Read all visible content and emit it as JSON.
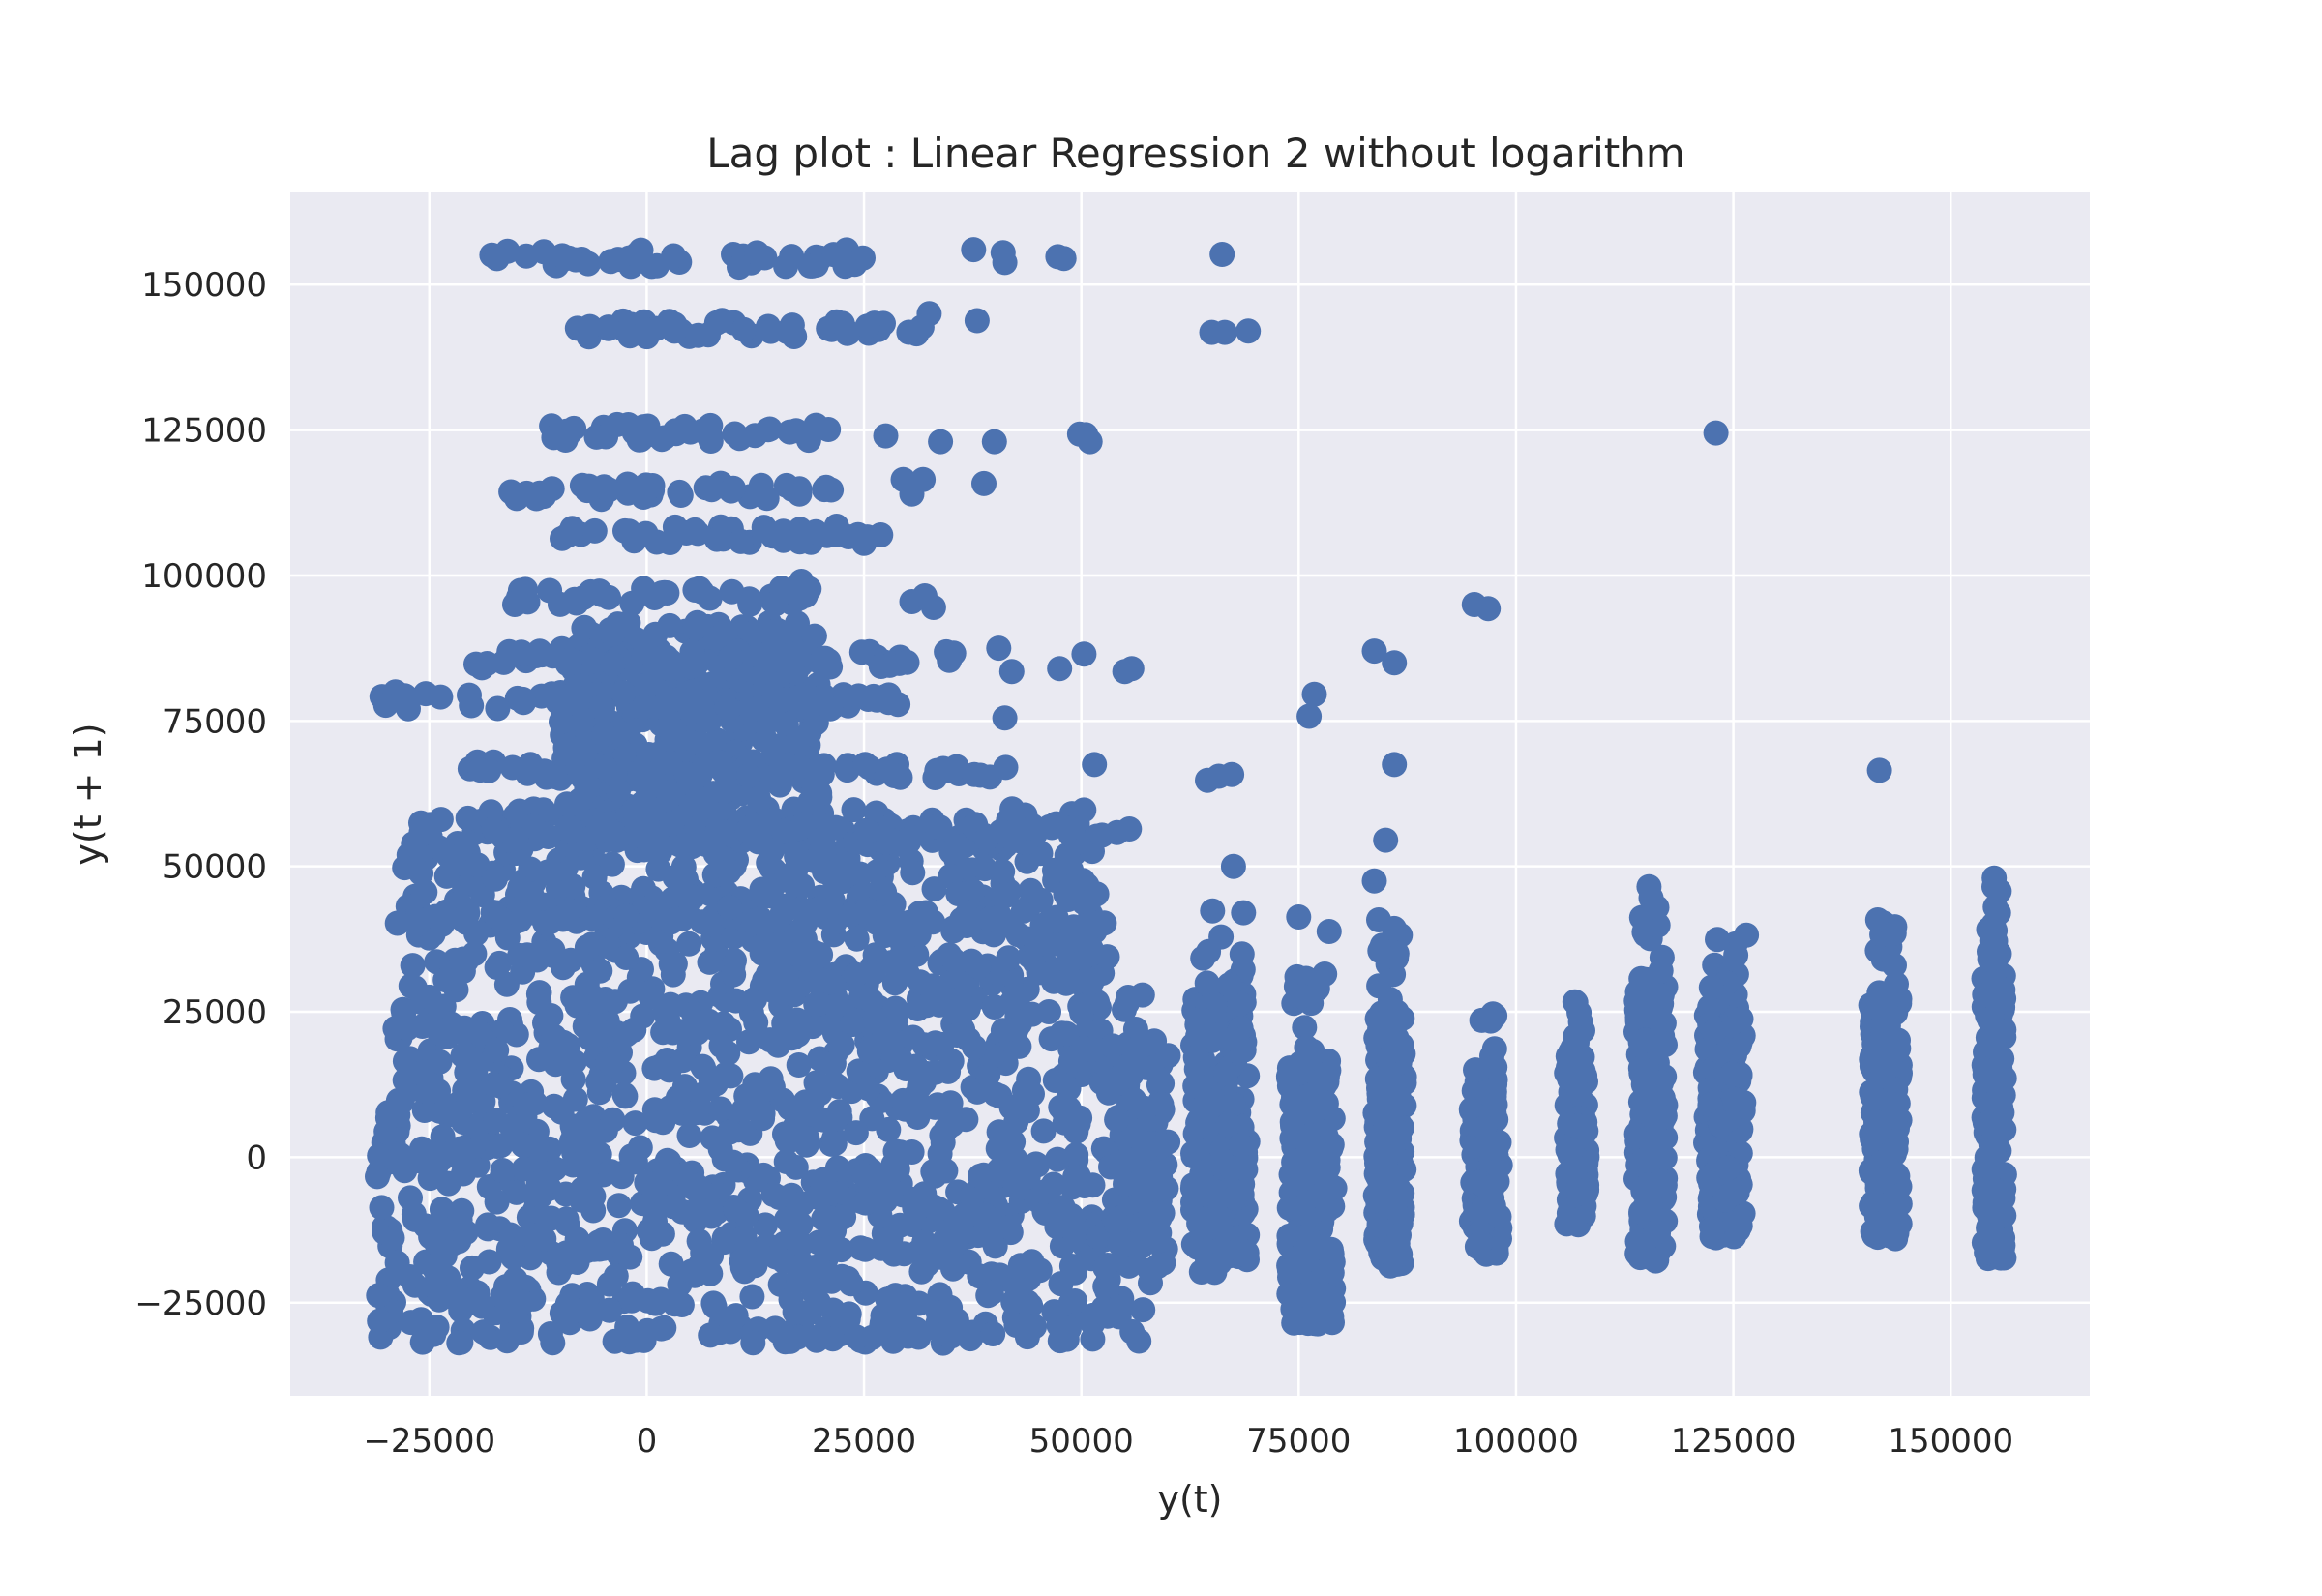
{
  "chart_data": {
    "type": "scatter",
    "title": "Lag plot : Linear Regression 2 without logarithm",
    "xlabel": "y(t)",
    "ylabel": "y(t + 1)",
    "xlim": [
      -41000,
      166000
    ],
    "ylim": [
      -41000,
      166000
    ],
    "xticks": [
      -25000,
      0,
      25000,
      50000,
      75000,
      100000,
      125000,
      150000
    ],
    "xtick_labels": [
      "−25000",
      "0",
      "25000",
      "50000",
      "75000",
      "100000",
      "125000",
      "150000"
    ],
    "yticks": [
      -25000,
      0,
      25000,
      50000,
      75000,
      100000,
      125000,
      150000
    ],
    "ytick_labels": [
      "−25000",
      "0",
      "25000",
      "50000",
      "75000",
      "100000",
      "125000",
      "150000"
    ],
    "grid": true,
    "point_color": "#4c72b0",
    "background_color": "#eaeaf2",
    "grid_color": "#ffffff",
    "dense_region": {
      "x": [
        -31000,
        58000
      ],
      "y": [
        -32000,
        60000
      ]
    },
    "clusters": [
      {
        "x": [
          62000,
          70000
        ],
        "y": [
          -20000,
          43000
        ]
      },
      {
        "x": [
          73000,
          80000
        ],
        "y": [
          -29000,
          32000
        ]
      },
      {
        "x": [
          83000,
          88000
        ],
        "y": [
          -19000,
          40000
        ]
      },
      {
        "x": [
          94000,
          99000
        ],
        "y": [
          -17000,
          25000
        ]
      },
      {
        "x": [
          105000,
          109000
        ],
        "y": [
          -12000,
          29000
        ]
      },
      {
        "x": [
          113000,
          118000
        ],
        "y": [
          -18000,
          46000
        ]
      },
      {
        "x": [
          121000,
          127000
        ],
        "y": [
          -14000,
          38000
        ]
      },
      {
        "x": [
          140000,
          145000
        ],
        "y": [
          -14000,
          41000
        ]
      },
      {
        "x": [
          153000,
          157000
        ],
        "y": [
          -18000,
          48000
        ]
      }
    ],
    "bands": [
      {
        "x": [
          -18000,
          25000
        ],
        "y": 154500
      },
      {
        "x": [
          -8000,
          33000
        ],
        "y": 142500
      },
      {
        "x": [
          -12000,
          23000
        ],
        "y": 124500
      },
      {
        "x": [
          -16000,
          22000
        ],
        "y": 114500
      },
      {
        "x": [
          -11000,
          27000
        ],
        "y": 107000
      },
      {
        "x": [
          -16000,
          20000
        ],
        "y": 96500
      },
      {
        "x": [
          -20000,
          36000
        ],
        "y": 85500
      },
      {
        "x": [
          -31000,
          30000
        ],
        "y": 78500
      },
      {
        "x": [
          -21000,
          42000
        ],
        "y": 66500
      },
      {
        "x": [
          -18000,
          57000
        ],
        "y": 55500
      },
      {
        "x": [
          -29000,
          42000
        ],
        "y": 41500
      }
    ],
    "outliers": [
      {
        "x": 37600,
        "y": 156000
      },
      {
        "x": 41000,
        "y": 155500
      },
      {
        "x": 41200,
        "y": 153800
      },
      {
        "x": 47300,
        "y": 154800
      },
      {
        "x": 48000,
        "y": 154500
      },
      {
        "x": 66200,
        "y": 155200
      },
      {
        "x": 38000,
        "y": 143800
      },
      {
        "x": 32500,
        "y": 145000
      },
      {
        "x": 65000,
        "y": 141800
      },
      {
        "x": 66500,
        "y": 141800
      },
      {
        "x": 69200,
        "y": 142000
      },
      {
        "x": 27500,
        "y": 124000
      },
      {
        "x": 33800,
        "y": 123000
      },
      {
        "x": 40000,
        "y": 123000
      },
      {
        "x": 49800,
        "y": 124300
      },
      {
        "x": 50500,
        "y": 124200
      },
      {
        "x": 51000,
        "y": 123000
      },
      {
        "x": 123000,
        "y": 124500
      },
      {
        "x": 29500,
        "y": 116500
      },
      {
        "x": 30500,
        "y": 114000
      },
      {
        "x": 31800,
        "y": 116500
      },
      {
        "x": 38800,
        "y": 115800
      },
      {
        "x": 17800,
        "y": 99000
      },
      {
        "x": 30500,
        "y": 95500
      },
      {
        "x": 32000,
        "y": 96500
      },
      {
        "x": 33000,
        "y": 94500
      },
      {
        "x": 95200,
        "y": 95000
      },
      {
        "x": 96800,
        "y": 94300
      },
      {
        "x": 83700,
        "y": 87000
      },
      {
        "x": 86000,
        "y": 85000
      },
      {
        "x": 40500,
        "y": 87500
      },
      {
        "x": 42000,
        "y": 83500
      },
      {
        "x": 47500,
        "y": 84000
      },
      {
        "x": 50300,
        "y": 86500
      },
      {
        "x": 55000,
        "y": 83500
      },
      {
        "x": 55800,
        "y": 84000
      },
      {
        "x": 76200,
        "y": 75800
      },
      {
        "x": 76800,
        "y": 79600
      },
      {
        "x": 41200,
        "y": 75500
      },
      {
        "x": 86000,
        "y": 67500
      },
      {
        "x": 141800,
        "y": 66500
      },
      {
        "x": 64500,
        "y": 64800
      },
      {
        "x": 65800,
        "y": 65500
      },
      {
        "x": 67300,
        "y": 65800
      },
      {
        "x": 51500,
        "y": 67500
      },
      {
        "x": 85000,
        "y": 54500
      },
      {
        "x": 67500,
        "y": 50000
      },
      {
        "x": 83700,
        "y": 47500
      },
      {
        "x": 115300,
        "y": 46500
      },
      {
        "x": 155000,
        "y": 48000
      },
      {
        "x": 155500,
        "y": 42000
      },
      {
        "x": 141600,
        "y": 40800
      },
      {
        "x": 143500,
        "y": 38500
      },
      {
        "x": 75000,
        "y": 41300
      },
      {
        "x": 78500,
        "y": 38800
      },
      {
        "x": 126500,
        "y": 38200
      },
      {
        "x": 84200,
        "y": 40800
      }
    ]
  }
}
